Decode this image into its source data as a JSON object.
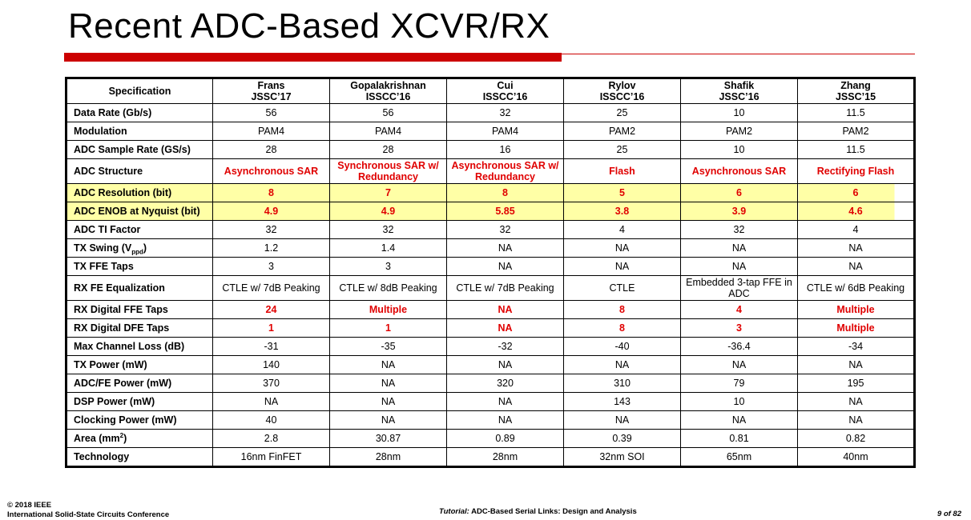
{
  "slide": {
    "title": "Recent ADC-Based XCVR/RX",
    "accent_color": "#cc0000",
    "highlight_color": "#ffffa6",
    "emphasis_color": "#e00000"
  },
  "table": {
    "header_label": "Specification",
    "columns": [
      {
        "author": "Frans",
        "venue": "JSSC’17"
      },
      {
        "author": "Gopalakrishnan",
        "venue": "ISSCC’16"
      },
      {
        "author": "Cui",
        "venue": "ISSCC’16"
      },
      {
        "author": "Rylov",
        "venue": "ISSCC’16"
      },
      {
        "author": "Shafik",
        "venue": "JSSC’16"
      },
      {
        "author": "Zhang",
        "venue": "JSSC’15"
      }
    ],
    "rows": [
      {
        "label": "Data Rate (Gb/s)",
        "values": [
          "56",
          "56",
          "32",
          "25",
          "10",
          "11.5"
        ]
      },
      {
        "label": "Modulation",
        "values": [
          "PAM4",
          "PAM4",
          "PAM4",
          "PAM2",
          "PAM2",
          "PAM2"
        ]
      },
      {
        "label": "ADC Sample Rate (GS/s)",
        "values": [
          "28",
          "28",
          "16",
          "25",
          "10",
          "11.5"
        ]
      },
      {
        "label": "ADC Structure",
        "values": [
          "Asynchronous SAR",
          "Synchronous SAR w/ Redundancy",
          "Asynchronous SAR w/ Redundancy",
          "Flash",
          "Asynchronous SAR",
          "Rectifying Flash"
        ]
      },
      {
        "label": "ADC Resolution (bit)",
        "values": [
          "8",
          "7",
          "8",
          "5",
          "6",
          "6"
        ]
      },
      {
        "label": "ADC ENOB at Nyquist (bit)",
        "values": [
          "4.9",
          "4.9",
          "5.85",
          "3.8",
          "3.9",
          "4.6"
        ]
      },
      {
        "label": "ADC TI Factor",
        "values": [
          "32",
          "32",
          "32",
          "4",
          "32",
          "4"
        ]
      },
      {
        "label": "TX Swing (V",
        "label_sub": "ppd",
        "label_tail": ")",
        "values": [
          "1.2",
          "1.4",
          "NA",
          "NA",
          "NA",
          "NA"
        ]
      },
      {
        "label": "TX FFE Taps",
        "values": [
          "3",
          "3",
          "NA",
          "NA",
          "NA",
          "NA"
        ]
      },
      {
        "label": "RX FE Equalization",
        "values": [
          "CTLE w/ 7dB Peaking",
          "CTLE w/ 8dB Peaking",
          "CTLE w/ 7dB Peaking",
          "CTLE",
          "Embedded 3-tap FFE in ADC",
          "CTLE w/ 6dB Peaking"
        ]
      },
      {
        "label": "RX Digital FFE Taps",
        "values": [
          "24",
          "Multiple",
          "NA",
          "8",
          "4",
          "Multiple"
        ]
      },
      {
        "label": "RX Digital DFE Taps",
        "values": [
          "1",
          "1",
          "NA",
          "8",
          "3",
          "Multiple"
        ]
      },
      {
        "label": "Max Channel Loss (dB)",
        "values": [
          "-31",
          "-35",
          "-32",
          "-40",
          "-36.4",
          "-34"
        ]
      },
      {
        "label": "TX Power (mW)",
        "values": [
          "140",
          "NA",
          "NA",
          "NA",
          "NA",
          "NA"
        ]
      },
      {
        "label": "ADC/FE Power (mW)",
        "values": [
          "370",
          "NA",
          "320",
          "310",
          "79",
          "195"
        ]
      },
      {
        "label": "DSP Power (mW)",
        "values": [
          "NA",
          "NA",
          "NA",
          "143",
          "10",
          "NA"
        ]
      },
      {
        "label": "Clocking Power (mW)",
        "values": [
          "40",
          "NA",
          "NA",
          "NA",
          "NA",
          "NA"
        ]
      },
      {
        "label": "Area (mm",
        "label_sup": "2",
        "label_tail": ")",
        "values": [
          "2.8",
          "30.87",
          "0.89",
          "0.39",
          "0.81",
          "0.82"
        ]
      },
      {
        "label": "Technology",
        "values": [
          "16nm FinFET",
          "28nm",
          "28nm",
          "32nm SOI",
          "65nm",
          "40nm"
        ]
      }
    ]
  },
  "footer": {
    "copyright": "© 2018 IEEE",
    "conference": "International Solid-State Circuits Conference",
    "tutorial_prefix": "Tutorial:",
    "tutorial_title": "ADC-Based Serial Links: Design and Analysis",
    "page": "9 of 82"
  }
}
